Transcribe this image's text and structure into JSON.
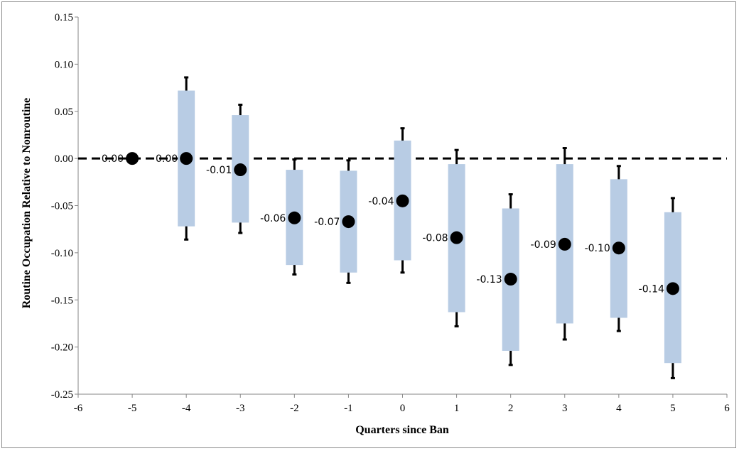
{
  "chart_data": {
    "type": "scatter",
    "title": "",
    "xlabel": "Quarters since Ban",
    "ylabel": "Routine Occupation Relative to Nonroutine",
    "xlim": [
      -6,
      6
    ],
    "ylim": [
      -0.25,
      0.15
    ],
    "x_ticks": [
      "-6",
      "-5",
      "-4",
      "-3",
      "-2",
      "-1",
      "0",
      "1",
      "2",
      "3",
      "4",
      "5",
      "6"
    ],
    "y_ticks": [
      "0.15",
      "0.10",
      "0.05",
      "0.00",
      "-0.05",
      "-0.10",
      "-0.15",
      "-0.20",
      "-0.25"
    ],
    "reference_line": {
      "y": 0,
      "style": "dashed"
    },
    "grid": false,
    "legend": "none",
    "colors": {
      "box": "#b8cce4",
      "point": "#000000",
      "whisker": "#000000"
    },
    "points": [
      {
        "x": -5,
        "estimate": 0.0,
        "label": "0.00",
        "box_low": null,
        "box_high": null,
        "whisker_low": null,
        "whisker_high": null
      },
      {
        "x": -4,
        "estimate": 0.0,
        "label": "0.00",
        "box_low": -0.072,
        "box_high": 0.072,
        "whisker_low": -0.086,
        "whisker_high": 0.086
      },
      {
        "x": -3,
        "estimate": -0.012,
        "label": "-0.01",
        "box_low": -0.068,
        "box_high": 0.046,
        "whisker_low": -0.079,
        "whisker_high": 0.057
      },
      {
        "x": -2,
        "estimate": -0.063,
        "label": "-0.06",
        "box_low": -0.113,
        "box_high": -0.012,
        "whisker_low": -0.123,
        "whisker_high": -0.001
      },
      {
        "x": -1,
        "estimate": -0.067,
        "label": "-0.07",
        "box_low": -0.121,
        "box_high": -0.013,
        "whisker_low": -0.132,
        "whisker_high": -0.002
      },
      {
        "x": 0,
        "estimate": -0.045,
        "label": "-0.04",
        "box_low": -0.108,
        "box_high": 0.019,
        "whisker_low": -0.121,
        "whisker_high": 0.032
      },
      {
        "x": 1,
        "estimate": -0.084,
        "label": "-0.08",
        "box_low": -0.163,
        "box_high": -0.006,
        "whisker_low": -0.178,
        "whisker_high": 0.009
      },
      {
        "x": 2,
        "estimate": -0.128,
        "label": "-0.13",
        "box_low": -0.204,
        "box_high": -0.053,
        "whisker_low": -0.219,
        "whisker_high": -0.038
      },
      {
        "x": 3,
        "estimate": -0.091,
        "label": "-0.09",
        "box_low": -0.175,
        "box_high": -0.006,
        "whisker_low": -0.192,
        "whisker_high": 0.011
      },
      {
        "x": 4,
        "estimate": -0.095,
        "label": "-0.10",
        "box_low": -0.169,
        "box_high": -0.022,
        "whisker_low": -0.183,
        "whisker_high": -0.008
      },
      {
        "x": 5,
        "estimate": -0.138,
        "label": "-0.14",
        "box_low": -0.217,
        "box_high": -0.057,
        "whisker_low": -0.233,
        "whisker_high": -0.042
      }
    ]
  }
}
